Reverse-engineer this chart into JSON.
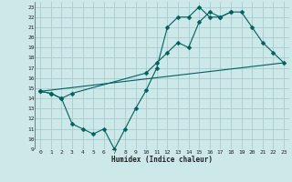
{
  "xlabel": "Humidex (Indice chaleur)",
  "background_color": "#cce8e8",
  "grid_color": "#aacccc",
  "line_color": "#006060",
  "xlim": [
    -0.5,
    23.5
  ],
  "ylim": [
    9,
    23.5
  ],
  "xticks": [
    0,
    1,
    2,
    3,
    4,
    5,
    6,
    7,
    8,
    9,
    10,
    11,
    12,
    13,
    14,
    15,
    16,
    17,
    18,
    19,
    20,
    21,
    22,
    23
  ],
  "yticks": [
    9,
    10,
    11,
    12,
    13,
    14,
    15,
    16,
    17,
    18,
    19,
    20,
    21,
    22,
    23
  ],
  "line1_x": [
    0,
    1,
    2,
    3,
    10,
    11,
    12,
    13,
    14,
    15,
    16,
    17,
    18,
    19,
    20,
    21,
    22,
    23
  ],
  "line1_y": [
    14.7,
    14.5,
    14.0,
    14.5,
    16.5,
    17.5,
    18.5,
    19.5,
    19.0,
    21.5,
    22.5,
    22.0,
    22.5,
    22.5,
    21.0,
    19.5,
    18.5,
    17.5
  ],
  "line2_x": [
    0,
    1,
    2,
    3,
    4,
    5,
    6,
    7,
    8,
    9,
    10,
    11,
    12,
    13,
    14,
    15,
    16,
    17,
    18
  ],
  "line2_y": [
    14.7,
    14.5,
    14.0,
    11.5,
    11.0,
    10.5,
    11.0,
    9.0,
    11.0,
    13.0,
    14.8,
    17.0,
    21.0,
    22.0,
    22.0,
    23.0,
    22.0,
    22.0,
    22.5
  ],
  "line3_x": [
    0,
    23
  ],
  "line3_y": [
    14.7,
    17.5
  ],
  "markersize": 2.5
}
